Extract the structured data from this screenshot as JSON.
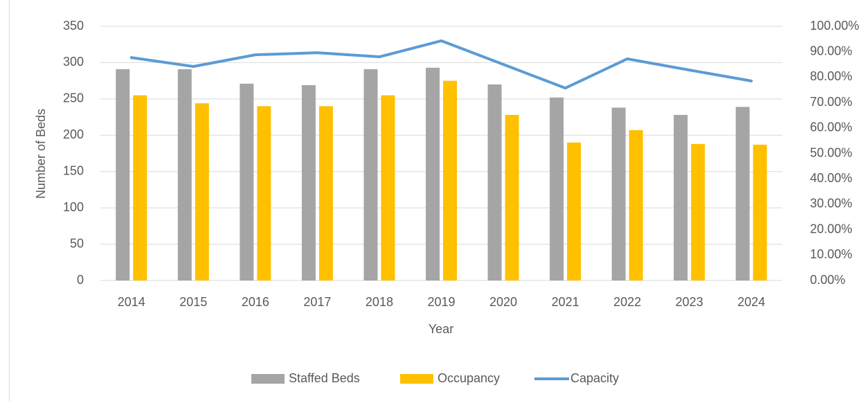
{
  "chart_data": {
    "type": "bar_line",
    "x_label": "Year",
    "y_label": "Number of Beds",
    "categories": [
      "2014",
      "2015",
      "2016",
      "2017",
      "2018",
      "2019",
      "2020",
      "2021",
      "2022",
      "2023",
      "2024"
    ],
    "series": [
      {
        "name": "Staffed Beds",
        "color": "#a5a5a5",
        "type": "bar",
        "values": [
          291,
          291,
          271,
          269,
          291,
          293,
          270,
          252,
          238,
          228,
          239
        ]
      },
      {
        "name": "Occupancy",
        "color": "#ffc000",
        "type": "bar",
        "values": [
          255,
          244,
          240,
          240,
          255,
          275,
          228,
          190,
          207,
          188,
          187
        ]
      },
      {
        "name": "Capacity",
        "color": "#5b9bd5",
        "type": "line",
        "axis": "y2",
        "values": [
          87.7,
          84.2,
          88.8,
          89.6,
          88.0,
          94.3,
          85.0,
          75.7,
          87.2,
          82.8,
          78.5
        ]
      }
    ],
    "ylim": [
      0,
      350
    ],
    "yticks": [
      0,
      50,
      100,
      150,
      200,
      250,
      300,
      350
    ],
    "y2lim": [
      0,
      100
    ],
    "y2ticks": [
      {
        "value": 0,
        "label": "0.00%"
      },
      {
        "value": 10,
        "label": "10.00%"
      },
      {
        "value": 20,
        "label": "20.00%"
      },
      {
        "value": 30,
        "label": "30.00%"
      },
      {
        "value": 40,
        "label": "40.00%"
      },
      {
        "value": 50,
        "label": "50.00%"
      },
      {
        "value": 60,
        "label": "60.00%"
      },
      {
        "value": 70,
        "label": "70.00%"
      },
      {
        "value": 80,
        "label": "80.00%"
      },
      {
        "value": 90,
        "label": "90.00%"
      },
      {
        "value": 100,
        "label": "100.00%"
      }
    ],
    "grid": true,
    "legend": "bottom"
  }
}
